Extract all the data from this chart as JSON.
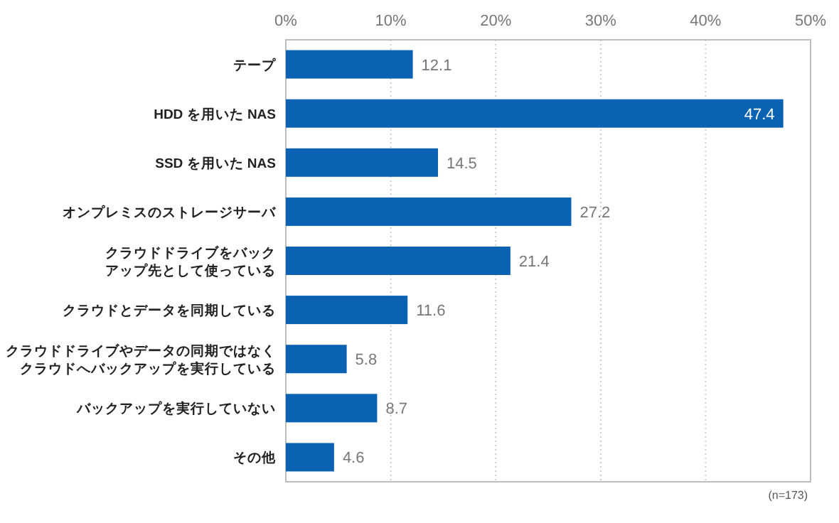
{
  "chart_data": {
    "type": "bar",
    "orientation": "horizontal",
    "categories": [
      "テープ",
      "HDD を用いた NAS",
      "SSD を用いた NAS",
      "オンプレミスのストレージサーバ",
      "クラウドドライブをバックアップ先として使っている",
      "クラウドとデータを同期している",
      "クラウドドライブやデータの同期ではなくクラウドへバックアップを実行している",
      "バックアップを実行していない",
      "その他"
    ],
    "values": [
      12.1,
      47.4,
      14.5,
      27.2,
      21.4,
      11.6,
      5.8,
      8.7,
      4.6
    ],
    "color": "#0b62b3",
    "xlim": [
      0,
      50
    ],
    "xticks": [
      {
        "value": 0,
        "label": "0%"
      },
      {
        "value": 10,
        "label": "10%"
      },
      {
        "value": 20,
        "label": "20%"
      },
      {
        "value": 30,
        "label": "30%"
      },
      {
        "value": 40,
        "label": "40%"
      },
      {
        "value": 50,
        "label": "50%"
      }
    ],
    "grid": "x",
    "data_labels": true,
    "annotations": [
      "(n=173)"
    ]
  }
}
